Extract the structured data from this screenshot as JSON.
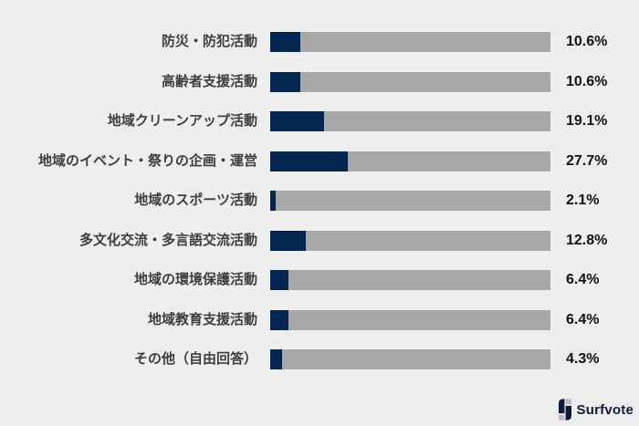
{
  "chart_data": {
    "type": "bar",
    "orientation": "horizontal",
    "title": "",
    "xlabel": "",
    "ylabel": "",
    "xlim": [
      0,
      100
    ],
    "grid": false,
    "legend": "none",
    "categories": [
      "防災・防犯活動",
      "高齢者支援活動",
      "地域クリーンアップ活動",
      "地域のイベント・祭りの企画・運営",
      "地域のスポーツ活動",
      "多文化交流・多言語交流活動",
      "地域の環境保護活動",
      "地域教育支援活動",
      "その他（自由回答）"
    ],
    "values": [
      10.6,
      10.6,
      19.1,
      27.7,
      2.1,
      12.8,
      6.4,
      6.4,
      4.3
    ],
    "value_labels": [
      "10.6%",
      "10.6%",
      "19.1%",
      "27.7%",
      "2.1%",
      "12.8%",
      "6.4%",
      "6.4%",
      "4.3%"
    ],
    "bar_color": "#062652",
    "track_color": "#a8a8a8",
    "background_color": "#eeeeee"
  },
  "branding": {
    "logo_text": "Surfvote",
    "logo_color": "#10193c",
    "logo_gray": "#b9bcc4"
  }
}
